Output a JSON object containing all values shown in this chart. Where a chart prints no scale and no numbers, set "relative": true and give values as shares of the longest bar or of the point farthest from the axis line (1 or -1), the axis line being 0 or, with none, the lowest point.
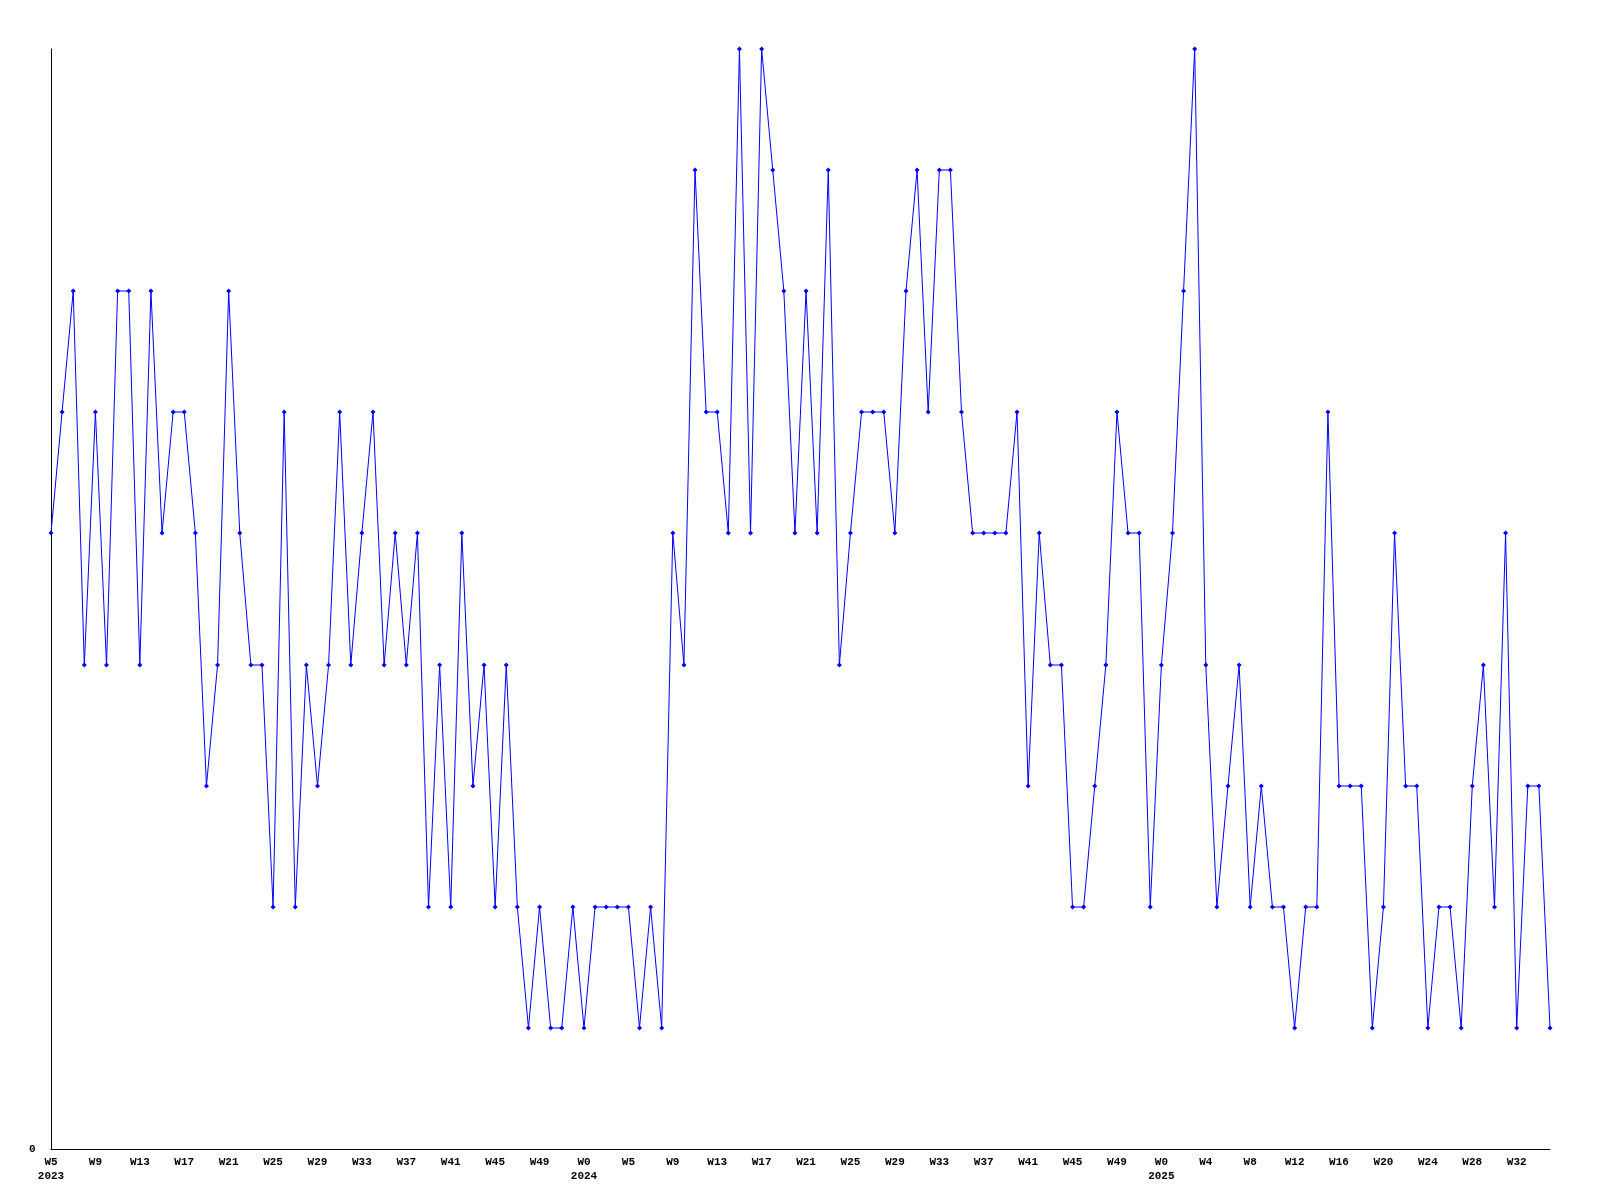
{
  "chart_data": {
    "type": "line",
    "relative": true,
    "marker": "diamond",
    "line_style": "solid",
    "annotations": [
      "0"
    ],
    "categories": [
      "W5\n2023",
      null,
      null,
      null,
      "W9",
      null,
      null,
      null,
      "W13",
      null,
      null,
      null,
      "W17",
      null,
      null,
      null,
      "W21",
      null,
      null,
      null,
      "W25",
      null,
      null,
      null,
      "W29",
      null,
      null,
      null,
      "W33",
      null,
      null,
      null,
      "W37",
      null,
      null,
      null,
      "W41",
      null,
      null,
      null,
      "W45",
      null,
      null,
      null,
      "W49",
      null,
      null,
      null,
      "W0\n2024",
      null,
      null,
      null,
      "W5",
      null,
      null,
      null,
      "W9",
      null,
      null,
      null,
      "W13",
      null,
      null,
      null,
      "W17",
      null,
      null,
      null,
      "W21",
      null,
      null,
      null,
      "W25",
      null,
      null,
      null,
      "W29",
      null,
      null,
      null,
      "W33",
      null,
      null,
      null,
      "W37",
      null,
      null,
      null,
      "W41",
      null,
      null,
      null,
      "W45",
      null,
      null,
      null,
      "W49",
      null,
      null,
      null,
      "W0\n2025",
      null,
      null,
      null,
      "W4",
      null,
      null,
      null,
      "W8",
      null,
      null,
      null,
      "W12",
      null,
      null,
      null,
      "W16",
      null,
      null,
      null,
      "W20",
      null,
      null,
      null,
      "W24",
      null,
      null,
      null,
      "W28",
      null,
      null,
      null,
      "W32",
      null,
      null,
      null
    ],
    "series": [
      {
        "color": "#0000ff",
        "values": [
          0.56,
          0.67,
          0.78,
          0.44,
          0.67,
          0.44,
          0.78,
          0.78,
          0.44,
          0.78,
          0.56,
          0.67,
          0.67,
          0.56,
          0.33,
          0.44,
          0.78,
          0.56,
          0.44,
          0.44,
          0.22,
          0.67,
          0.22,
          0.44,
          0.33,
          0.44,
          0.67,
          0.44,
          0.56,
          0.67,
          0.44,
          0.56,
          0.44,
          0.56,
          0.22,
          0.44,
          0.22,
          0.56,
          0.33,
          0.44,
          0.22,
          0.44,
          0.22,
          0.11,
          0.22,
          0.11,
          0.11,
          0.22,
          0.11,
          0.22,
          0.22,
          0.22,
          0.22,
          0.11,
          0.22,
          0.11,
          0.56,
          0.44,
          0.89,
          0.67,
          0.67,
          0.56,
          1,
          0.56,
          1,
          0.89,
          0.78,
          0.56,
          0.78,
          0.56,
          0.89,
          0.44,
          0.56,
          0.67,
          0.67,
          0.67,
          0.56,
          0.78,
          0.89,
          0.67,
          0.89,
          0.89,
          0.67,
          0.56,
          0.56,
          0.56,
          0.56,
          0.67,
          0.33,
          0.56,
          0.44,
          0.44,
          0.22,
          0.22,
          0.33,
          0.44,
          0.67,
          0.56,
          0.56,
          0.22,
          0.44,
          0.56,
          0.78,
          1,
          0.44,
          0.22,
          0.33,
          0.44,
          0.22,
          0.33,
          0.22,
          0.22,
          0.11,
          0.22,
          0.22,
          0.67,
          0.33,
          0.33,
          0.33,
          0.11,
          0.22,
          0.56,
          0.33,
          0.33,
          0.11,
          0.22,
          0.22,
          0.11,
          0.33,
          0.44,
          0.22,
          0.56,
          0.11,
          0.33,
          0.33,
          0.11
        ]
      }
    ]
  }
}
